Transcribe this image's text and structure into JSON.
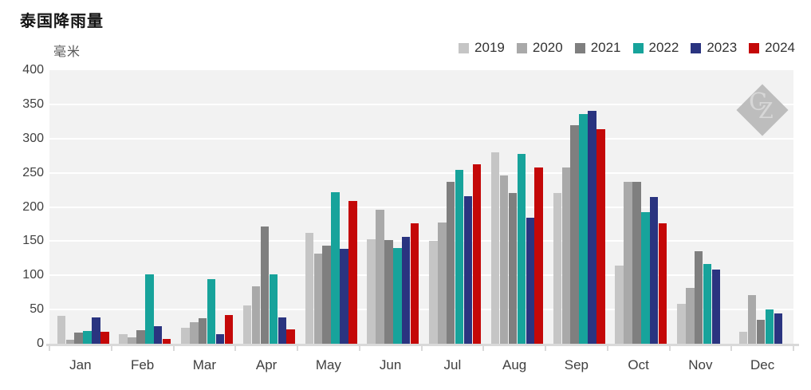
{
  "title": "泰国降雨量",
  "unit_label": "毫米",
  "watermark": {
    "letter_c": "C",
    "letter_z": "Z"
  },
  "chart_data": {
    "type": "bar",
    "title": "泰国降雨量",
    "ylabel": "毫米",
    "xlabel": "",
    "ylim": [
      0,
      400
    ],
    "yticks": [
      0,
      50,
      100,
      150,
      200,
      250,
      300,
      350,
      400
    ],
    "grid": "horizontal white gridlines on light gray panel",
    "legend_position": "top-right",
    "panel_color": "#f2f2f2",
    "gridline_color": "#ffffff",
    "axis_color": "#d9d9d9",
    "categories": [
      "Jan",
      "Feb",
      "Mar",
      "Apr",
      "May",
      "Jun",
      "Jul",
      "Aug",
      "Sep",
      "Oct",
      "Nov",
      "Dec"
    ],
    "series": [
      {
        "name": "2019",
        "color": "#c5c5c5",
        "values": [
          41,
          14,
          23,
          56,
          162,
          153,
          151,
          280,
          220,
          114,
          58,
          18
        ]
      },
      {
        "name": "2020",
        "color": "#a9a9a9",
        "values": [
          6,
          9,
          32,
          84,
          132,
          196,
          177,
          246,
          258,
          237,
          82,
          71
        ]
      },
      {
        "name": "2021",
        "color": "#7f7f7f",
        "values": [
          16,
          20,
          37,
          172,
          144,
          152,
          237,
          221,
          320,
          237,
          135,
          35
        ]
      },
      {
        "name": "2022",
        "color": "#17a39b",
        "values": [
          19,
          102,
          94,
          101,
          222,
          140,
          254,
          278,
          336,
          192,
          117,
          50
        ]
      },
      {
        "name": "2023",
        "color": "#2a3480",
        "values": [
          39,
          26,
          14,
          38,
          139,
          156,
          216,
          184,
          340,
          215,
          108,
          44
        ]
      },
      {
        "name": "2024",
        "color": "#c40808",
        "values": [
          18,
          7,
          42,
          21,
          209,
          176,
          262,
          258,
          314,
          176,
          null,
          null
        ]
      }
    ]
  }
}
